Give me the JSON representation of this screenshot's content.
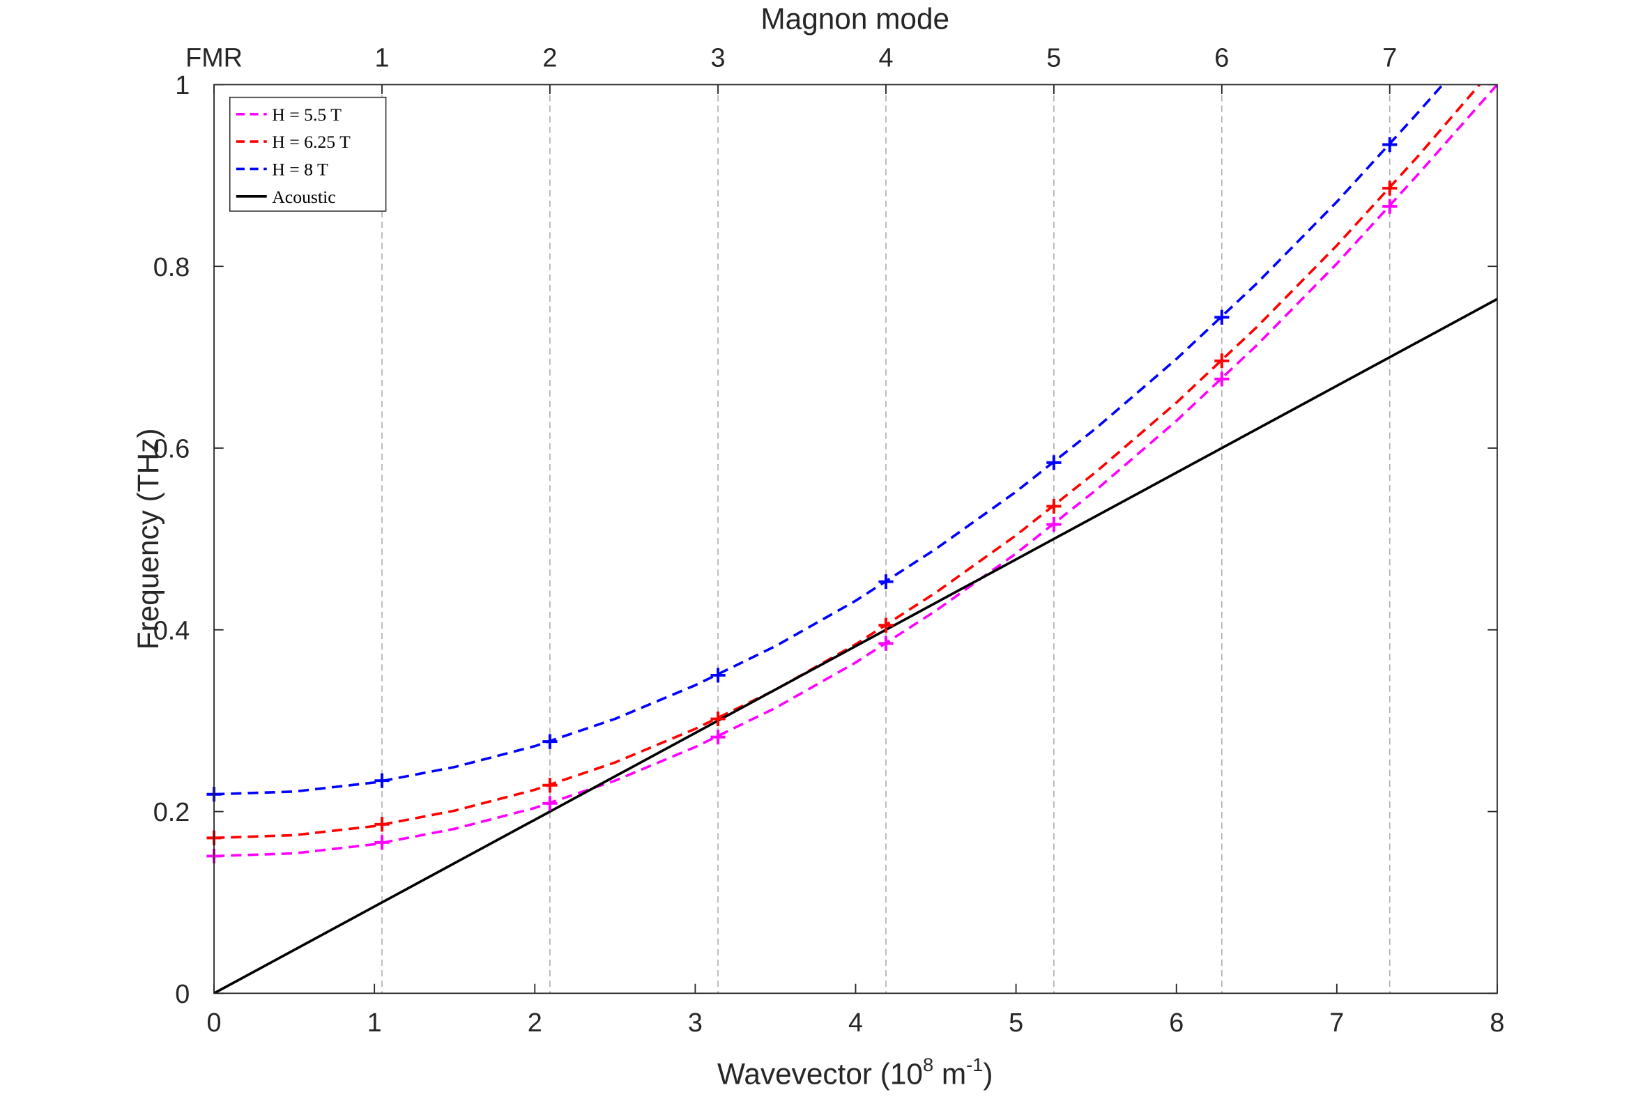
{
  "chart_data": {
    "type": "line",
    "title": "",
    "xlabel": {
      "prefix": "Wavevector (10",
      "exp1": "8",
      "mid": " m",
      "exp2": "-1",
      "suffix": ")"
    },
    "ylabel": "Frequency (THz)",
    "top_xlabel": "Magnon mode",
    "xlim": [
      0,
      8
    ],
    "ylim": [
      0,
      1
    ],
    "x_ticks": [
      0,
      1,
      2,
      3,
      4,
      5,
      6,
      7,
      8
    ],
    "x_tick_labels": [
      "0",
      "1",
      "2",
      "3",
      "4",
      "5",
      "6",
      "7",
      "8"
    ],
    "y_ticks": [
      0,
      0.2,
      0.4,
      0.6,
      0.8,
      1
    ],
    "y_tick_labels": [
      "0",
      "0.2",
      "0.4",
      "0.6",
      "0.8",
      "1"
    ],
    "top_ticks": [
      0,
      1.047,
      2.094,
      3.142,
      4.189,
      5.236,
      6.283,
      7.33
    ],
    "top_tick_labels": [
      "FMR",
      "1",
      "2",
      "3",
      "4",
      "5",
      "6",
      "7"
    ],
    "mode_gridlines": true,
    "gridline_color": "#b0b0b0",
    "axis_color": "#262626",
    "legend_position": "top-left",
    "series": [
      {
        "name": "H = 5.5 T",
        "color": "#ff00ff",
        "dashed": true,
        "x": [
          0,
          0.5,
          1,
          1.5,
          2,
          2.5,
          3,
          3.5,
          4,
          4.5,
          5,
          5.5,
          6,
          6.5,
          7,
          7.5,
          8
        ],
        "y": [
          0.151,
          0.154,
          0.164,
          0.181,
          0.204,
          0.234,
          0.271,
          0.314,
          0.364,
          0.421,
          0.484,
          0.554,
          0.63,
          0.713,
          0.803,
          0.9,
          1.0
        ],
        "marker_x": [
          0,
          1.047,
          2.094,
          3.142,
          4.189,
          5.236,
          6.283,
          7.33
        ],
        "marker_y": [
          0.151,
          0.166,
          0.209,
          0.282,
          0.385,
          0.516,
          0.676,
          0.866
        ]
      },
      {
        "name": "H = 6.25 T",
        "color": "#ff0000",
        "dashed": true,
        "x": [
          0,
          0.5,
          1,
          1.5,
          2,
          2.5,
          3,
          3.5,
          4,
          4.5,
          5,
          5.5,
          6,
          6.5,
          7,
          7.5,
          7.89
        ],
        "y": [
          0.171,
          0.174,
          0.184,
          0.201,
          0.224,
          0.254,
          0.291,
          0.334,
          0.384,
          0.441,
          0.504,
          0.574,
          0.65,
          0.733,
          0.823,
          0.92,
          1.0
        ],
        "marker_x": [
          0,
          1.047,
          2.094,
          3.142,
          4.189,
          5.236,
          6.283,
          7.33
        ],
        "marker_y": [
          0.171,
          0.186,
          0.229,
          0.302,
          0.405,
          0.536,
          0.696,
          0.886
        ]
      },
      {
        "name": "H = 8 T",
        "color": "#0000ff",
        "dashed": true,
        "x": [
          0,
          0.5,
          1,
          1.5,
          2,
          2.5,
          3,
          3.5,
          4,
          4.5,
          5,
          5.5,
          6,
          6.5,
          7,
          7.5,
          7.66
        ],
        "y": [
          0.219,
          0.222,
          0.232,
          0.249,
          0.272,
          0.302,
          0.339,
          0.382,
          0.432,
          0.489,
          0.552,
          0.622,
          0.698,
          0.781,
          0.871,
          0.968,
          1.0
        ],
        "marker_x": [
          0,
          1.047,
          2.094,
          3.142,
          4.189,
          5.236,
          6.283,
          7.33
        ],
        "marker_y": [
          0.219,
          0.234,
          0.277,
          0.35,
          0.453,
          0.584,
          0.744,
          0.934
        ]
      },
      {
        "name": "Acoustic",
        "color": "#000000",
        "dashed": false,
        "x": [
          0,
          8
        ],
        "y": [
          0,
          0.764
        ]
      }
    ]
  }
}
